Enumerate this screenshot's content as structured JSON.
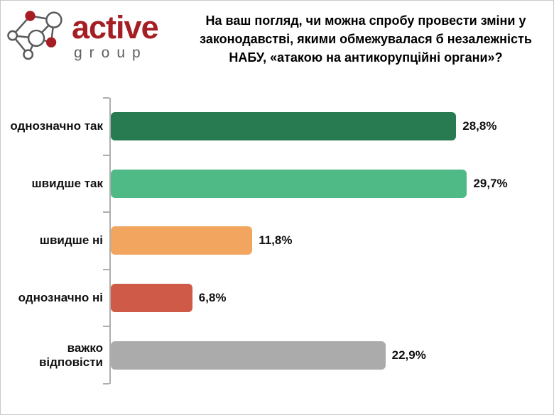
{
  "logo": {
    "brand": "active",
    "sub": "group"
  },
  "header": {
    "title_lines": [
      "На ваш погляд, чи можна спробу провести зміни у",
      "законодавстві, якими обмежувалася б незалежність",
      "НАБУ, «атакою на антикорупційні органи»?"
    ]
  },
  "chart_data": {
    "type": "bar",
    "orientation": "horizontal",
    "title": "На ваш погляд, чи можна спробу провести зміни у законодавстві, якими обмежувалася б незалежність НАБУ, «атакою на антикорупційні органи»?",
    "categories": [
      "однозначно так",
      "швидше так",
      "швидше ні",
      "однозначно ні",
      "важко відповісти"
    ],
    "values": [
      28.8,
      29.7,
      11.8,
      6.8,
      22.9
    ],
    "value_labels": [
      "28,8%",
      "29,7%",
      "11,8%",
      "6,8%",
      "22,9%"
    ],
    "colors": [
      "#287a51",
      "#4fba85",
      "#f2a55e",
      "#cf5a47",
      "#ababab"
    ],
    "xlim": [
      0,
      36.9
    ],
    "grid": false,
    "legend": false
  },
  "colors": {
    "brand_red": "#a41e23",
    "logo_gray": "#5d5e60",
    "axis": "#aeaeae",
    "frame_border": "#c9c9c9",
    "text": "#111111"
  }
}
